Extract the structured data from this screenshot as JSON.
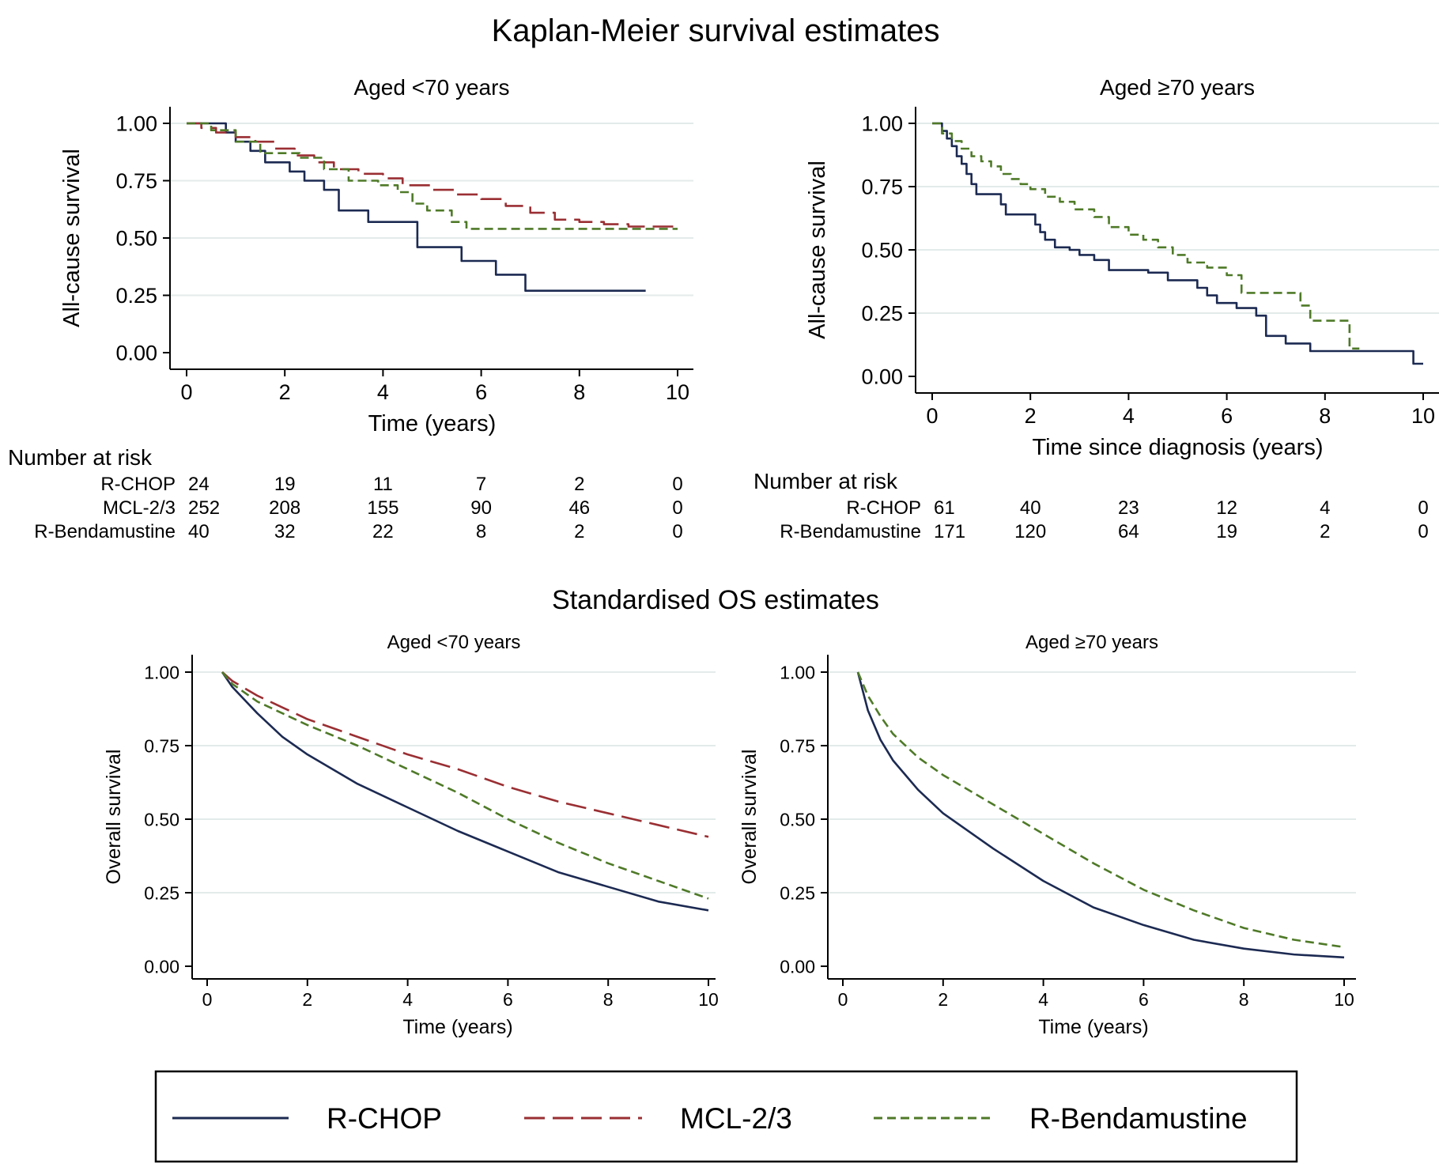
{
  "colors": {
    "rchop": "#1c2a52",
    "mcl": "#9a2f33",
    "rbenda": "#4f7a28",
    "grid": "#e3ebea",
    "axis": "#000000",
    "legend_border": "#000000"
  },
  "figure": {
    "km_title": "Kaplan-Meier survival estimates",
    "os_title": "Standardised OS estimates"
  },
  "legend": {
    "items": [
      {
        "key": "rchop",
        "label": "R-CHOP",
        "dash": "solid"
      },
      {
        "key": "mcl",
        "label": "MCL-2/3",
        "dash": "longdash"
      },
      {
        "key": "rbenda",
        "label": "R-Bendamustine",
        "dash": "shortdash"
      }
    ]
  },
  "chart_data": [
    {
      "id": "km_lt70",
      "type": "line",
      "step": true,
      "title": "Aged <70 years",
      "xlabel": "Time (years)",
      "ylabel": "All-cause survival",
      "xlim": [
        0,
        10
      ],
      "ylim": [
        0,
        1
      ],
      "xticks": [
        0,
        2,
        4,
        6,
        8,
        10
      ],
      "yticks": [
        0,
        0.25,
        0.5,
        0.75,
        1
      ],
      "ytick_labels": [
        "0.00",
        "0.25",
        "0.50",
        "0.75",
        "1.00"
      ],
      "grid": true,
      "series": [
        {
          "name": "R-CHOP",
          "key": "rchop",
          "x": [
            0,
            0.8,
            1.0,
            1.3,
            1.6,
            2.1,
            2.4,
            2.8,
            3.1,
            3.7,
            4.3,
            4.7,
            5.1,
            5.6,
            6.3,
            6.9,
            9.35
          ],
          "y": [
            1,
            0.96,
            0.92,
            0.88,
            0.83,
            0.79,
            0.75,
            0.71,
            0.62,
            0.57,
            0.57,
            0.46,
            0.46,
            0.4,
            0.34,
            0.27,
            0.27
          ]
        },
        {
          "name": "MCL-2/3",
          "key": "mcl",
          "x": [
            0,
            0.3,
            0.6,
            1.0,
            1.4,
            1.8,
            2.2,
            2.6,
            3.0,
            3.5,
            4.0,
            4.4,
            5.0,
            5.5,
            6.0,
            6.5,
            7.0,
            7.5,
            8.0,
            8.5,
            9.0,
            10.0
          ],
          "y": [
            1,
            0.98,
            0.96,
            0.94,
            0.92,
            0.89,
            0.86,
            0.83,
            0.8,
            0.78,
            0.76,
            0.73,
            0.71,
            0.69,
            0.67,
            0.64,
            0.61,
            0.58,
            0.57,
            0.56,
            0.55,
            0.55
          ]
        },
        {
          "name": "R-Bendamustine",
          "key": "rbenda",
          "x": [
            0,
            0.5,
            1.0,
            1.5,
            2.3,
            2.8,
            3.3,
            3.9,
            4.3,
            4.6,
            4.9,
            5.4,
            5.7,
            10.0
          ],
          "y": [
            1,
            0.97,
            0.92,
            0.87,
            0.85,
            0.8,
            0.75,
            0.73,
            0.7,
            0.65,
            0.62,
            0.57,
            0.54,
            0.54
          ]
        }
      ],
      "risk_table": {
        "title": "Number at risk",
        "rows": [
          {
            "label": "R-CHOP",
            "values": [
              "24",
              "19",
              "11",
              "7",
              "2",
              "0"
            ]
          },
          {
            "label": "MCL-2/3",
            "values": [
              "252",
              "208",
              "155",
              "90",
              "46",
              "0"
            ]
          },
          {
            "label": "R-Bendamustine",
            "values": [
              "40",
              "32",
              "22",
              "8",
              "2",
              "0"
            ]
          }
        ]
      }
    },
    {
      "id": "km_ge70",
      "type": "line",
      "step": true,
      "title": "Aged ≥70 years",
      "xlabel": "Time since diagnosis (years)",
      "ylabel": "All-cause survival",
      "xlim": [
        0,
        10
      ],
      "ylim": [
        0,
        1
      ],
      "xticks": [
        0,
        2,
        4,
        6,
        8,
        10
      ],
      "yticks": [
        0,
        0.25,
        0.5,
        0.75,
        1
      ],
      "ytick_labels": [
        "0.00",
        "0.25",
        "0.50",
        "0.75",
        "1.00"
      ],
      "grid": true,
      "series": [
        {
          "name": "R-CHOP",
          "key": "rchop",
          "x": [
            0,
            0.2,
            0.3,
            0.4,
            0.5,
            0.6,
            0.7,
            0.8,
            0.9,
            1.1,
            1.4,
            1.5,
            2.0,
            2.1,
            2.2,
            2.3,
            2.5,
            2.8,
            3.0,
            3.3,
            3.6,
            4.4,
            4.8,
            5.4,
            5.6,
            5.8,
            6.2,
            6.6,
            6.8,
            7.2,
            7.7,
            9.0,
            9.8,
            10.0
          ],
          "y": [
            1,
            0.97,
            0.94,
            0.91,
            0.87,
            0.84,
            0.8,
            0.76,
            0.72,
            0.72,
            0.68,
            0.64,
            0.64,
            0.6,
            0.57,
            0.54,
            0.51,
            0.5,
            0.48,
            0.46,
            0.42,
            0.41,
            0.38,
            0.35,
            0.32,
            0.29,
            0.27,
            0.24,
            0.16,
            0.13,
            0.1,
            0.1,
            0.05,
            0.05
          ]
        },
        {
          "name": "R-Bendamustine",
          "key": "rbenda",
          "x": [
            0,
            0.2,
            0.4,
            0.6,
            0.8,
            1.0,
            1.2,
            1.4,
            1.6,
            1.8,
            2.0,
            2.3,
            2.6,
            2.9,
            3.3,
            3.6,
            4.0,
            4.3,
            4.6,
            4.9,
            5.2,
            5.6,
            6.0,
            6.3,
            6.8,
            7.5,
            7.7,
            8.2,
            8.5,
            8.7
          ],
          "y": [
            1,
            0.96,
            0.93,
            0.9,
            0.87,
            0.85,
            0.83,
            0.8,
            0.78,
            0.76,
            0.74,
            0.71,
            0.69,
            0.66,
            0.63,
            0.59,
            0.56,
            0.54,
            0.51,
            0.48,
            0.45,
            0.43,
            0.4,
            0.33,
            0.33,
            0.28,
            0.22,
            0.22,
            0.11,
            0.11
          ]
        }
      ],
      "risk_table": {
        "title": "Number at risk",
        "rows": [
          {
            "label": "R-CHOP",
            "values": [
              "61",
              "40",
              "23",
              "12",
              "4",
              "0"
            ]
          },
          {
            "label": "R-Bendamustine",
            "values": [
              "171",
              "120",
              "64",
              "19",
              "2",
              "0"
            ]
          }
        ]
      }
    },
    {
      "id": "os_lt70",
      "type": "line",
      "step": false,
      "title": "Aged <70 years",
      "xlabel": "Time (years)",
      "ylabel": "Overall survival",
      "xlim": [
        0,
        10
      ],
      "ylim": [
        0,
        1
      ],
      "xticks": [
        0,
        2,
        4,
        6,
        8,
        10
      ],
      "yticks": [
        0,
        0.25,
        0.5,
        0.75,
        1
      ],
      "ytick_labels": [
        "0.00",
        "0.25",
        "0.50",
        "0.75",
        "1.00"
      ],
      "grid": true,
      "series": [
        {
          "name": "R-CHOP",
          "key": "rchop",
          "x": [
            0.3,
            0.5,
            1,
            1.5,
            2,
            3,
            4,
            5,
            6,
            7,
            8,
            9,
            10
          ],
          "y": [
            1,
            0.95,
            0.86,
            0.78,
            0.72,
            0.62,
            0.54,
            0.46,
            0.39,
            0.32,
            0.27,
            0.22,
            0.19
          ]
        },
        {
          "name": "MCL-2/3",
          "key": "mcl",
          "x": [
            0.3,
            0.5,
            1,
            1.5,
            2,
            3,
            4,
            5,
            6,
            7,
            8,
            9,
            10
          ],
          "y": [
            1,
            0.97,
            0.92,
            0.88,
            0.84,
            0.78,
            0.72,
            0.67,
            0.61,
            0.56,
            0.52,
            0.48,
            0.44
          ]
        },
        {
          "name": "R-Bendamustine",
          "key": "rbenda",
          "x": [
            0.3,
            0.5,
            1,
            1.5,
            2,
            3,
            4,
            5,
            6,
            7,
            8,
            9,
            10
          ],
          "y": [
            1,
            0.96,
            0.9,
            0.86,
            0.82,
            0.75,
            0.67,
            0.59,
            0.5,
            0.42,
            0.35,
            0.29,
            0.23
          ]
        }
      ]
    },
    {
      "id": "os_ge70",
      "type": "line",
      "step": false,
      "title": "Aged ≥70 years",
      "xlabel": "Time (years)",
      "ylabel": "Overall survival",
      "xlim": [
        0,
        10
      ],
      "ylim": [
        0,
        1
      ],
      "xticks": [
        0,
        2,
        4,
        6,
        8,
        10
      ],
      "yticks": [
        0,
        0.25,
        0.5,
        0.75,
        1
      ],
      "ytick_labels": [
        "0.00",
        "0.25",
        "0.50",
        "0.75",
        "1.00"
      ],
      "grid": true,
      "series": [
        {
          "name": "R-CHOP",
          "key": "rchop",
          "x": [
            0.3,
            0.5,
            0.75,
            1,
            1.5,
            2,
            3,
            4,
            5,
            6,
            7,
            8,
            9,
            10
          ],
          "y": [
            1,
            0.87,
            0.77,
            0.7,
            0.6,
            0.52,
            0.4,
            0.29,
            0.2,
            0.14,
            0.09,
            0.06,
            0.04,
            0.03
          ]
        },
        {
          "name": "R-Bendamustine",
          "key": "rbenda",
          "x": [
            0.3,
            0.5,
            0.75,
            1,
            1.5,
            2,
            3,
            4,
            5,
            6,
            7,
            8,
            9,
            10
          ],
          "y": [
            1,
            0.92,
            0.85,
            0.79,
            0.71,
            0.65,
            0.55,
            0.45,
            0.35,
            0.26,
            0.19,
            0.13,
            0.09,
            0.065
          ]
        }
      ]
    }
  ]
}
